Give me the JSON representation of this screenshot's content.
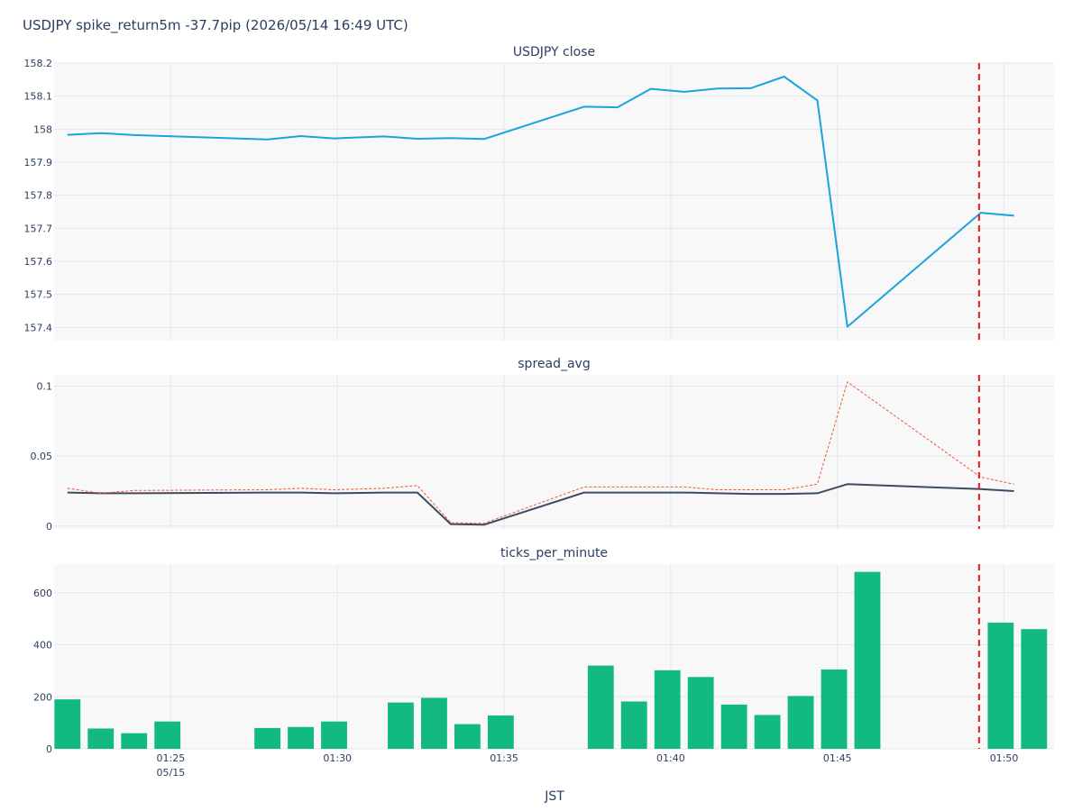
{
  "chart_data": {
    "type": "line",
    "title": "USDJPY spike_return5m -37.7pip (2026/05/14 16:49 UTC)",
    "xlabel": "JST",
    "x_ticks": [
      {
        "minute": 25,
        "label": "01:25",
        "sublabel": "05/15"
      },
      {
        "minute": 30,
        "label": "01:30"
      },
      {
        "minute": 35,
        "label": "01:35"
      },
      {
        "minute": 40,
        "label": "01:40"
      },
      {
        "minute": 45,
        "label": "01:45"
      },
      {
        "minute": 50,
        "label": "01:50"
      }
    ],
    "xlim": [
      21.5,
      51.5
    ],
    "spike_marker": {
      "minute": 49.25,
      "color": "#e31a1c"
    },
    "subplots": [
      {
        "title": "USDJPY close",
        "type": "line",
        "ylim": [
          157.36,
          158.2
        ],
        "y_ticks": [
          157.4,
          157.5,
          157.6,
          157.7,
          157.8,
          157.9,
          158,
          158.1,
          158.2
        ],
        "y_tick_labels": [
          "157.4",
          "157.5",
          "157.6",
          "157.7",
          "157.8",
          "157.9",
          "158",
          "158.1",
          "158.2"
        ],
        "series": [
          {
            "color": "#1ba3dc",
            "dash": "solid",
            "x": [
              21.9,
              22.9,
              23.9,
              27.9,
              28.9,
              29.9,
              31.4,
              32.4,
              33.4,
              34.4,
              37.4,
              38.4,
              39.4,
              40.4,
              41.4,
              42.4,
              43.4,
              44.4,
              45.3,
              49.3,
              50.3
            ],
            "y": [
              157.983,
              157.988,
              157.982,
              157.969,
              157.979,
              157.972,
              157.978,
              157.971,
              157.973,
              157.97,
              158.068,
              158.066,
              158.122,
              158.113,
              158.123,
              158.124,
              158.159,
              158.087,
              157.402,
              157.747,
              157.738
            ]
          }
        ]
      },
      {
        "title": "spread_avg",
        "type": "line",
        "ylim": [
          -0.002,
          0.108
        ],
        "y_ticks": [
          0,
          0.05,
          0.1
        ],
        "y_tick_labels": [
          "0",
          "0.05",
          "0.1"
        ],
        "series": [
          {
            "color": "#3d4c63",
            "dash": "solid",
            "x": [
              21.9,
              22.9,
              23.9,
              27.9,
              28.9,
              29.9,
              31.4,
              32.4,
              33.4,
              34.4,
              37.4,
              38.4,
              39.4,
              40.4,
              41.4,
              42.4,
              43.4,
              44.4,
              45.3,
              49.3,
              50.3
            ],
            "y": [
              0.024,
              0.0235,
              0.0235,
              0.024,
              0.024,
              0.0235,
              0.024,
              0.024,
              0.0015,
              0.001,
              0.024,
              0.024,
              0.024,
              0.024,
              0.0235,
              0.023,
              0.023,
              0.0235,
              0.03,
              0.0265,
              0.025
            ]
          },
          {
            "color": "#ef553b",
            "dash": "dot",
            "x": [
              21.9,
              22.9,
              23.9,
              27.9,
              28.9,
              29.9,
              31.4,
              32.4,
              33.4,
              34.4,
              37.4,
              38.4,
              39.4,
              40.4,
              41.4,
              42.4,
              43.4,
              44.4,
              45.3,
              49.3,
              50.3
            ],
            "y": [
              0.027,
              0.0235,
              0.0255,
              0.026,
              0.027,
              0.026,
              0.027,
              0.029,
              0.0025,
              0.002,
              0.028,
              0.028,
              0.028,
              0.028,
              0.026,
              0.026,
              0.026,
              0.03,
              0.103,
              0.035,
              0.03
            ]
          }
        ]
      },
      {
        "title": "ticks_per_minute",
        "type": "bar",
        "ylim": [
          0,
          710
        ],
        "y_ticks": [
          0,
          200,
          400,
          600
        ],
        "y_tick_labels": [
          "0",
          "200",
          "400",
          "600"
        ],
        "bar_color": "#12b980",
        "x": [
          21.9,
          22.9,
          23.9,
          24.9,
          27.9,
          28.9,
          29.9,
          31.9,
          32.9,
          33.9,
          34.9,
          37.9,
          38.9,
          39.9,
          40.9,
          41.9,
          42.9,
          43.9,
          44.9,
          45.9,
          49.9,
          50.9
        ],
        "values": [
          190,
          78,
          60,
          105,
          80,
          84,
          105,
          178,
          196,
          95,
          128,
          320,
          182,
          302,
          276,
          170,
          130,
          203,
          305,
          680,
          485,
          460
        ]
      }
    ]
  }
}
